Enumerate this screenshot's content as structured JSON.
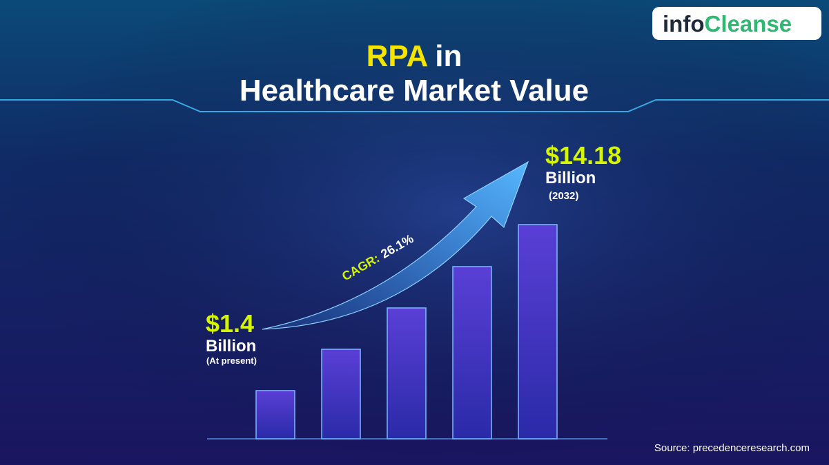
{
  "header": {
    "logo": [
      "info",
      "Cleanse"
    ],
    "title": {
      "highlight": "RPA",
      "rest": "in",
      "line2": "Healthcare Market Value"
    }
  },
  "start": {
    "value": "$1.4",
    "unit": "Billion",
    "note": "(At present)"
  },
  "end": {
    "value": "$14.18",
    "unit": "Billion",
    "note": "(2032)"
  },
  "growth": {
    "label": "CAGR:",
    "value": "26.1%"
  },
  "footer": {
    "source": "Source: precedenceresearch.com"
  }
}
